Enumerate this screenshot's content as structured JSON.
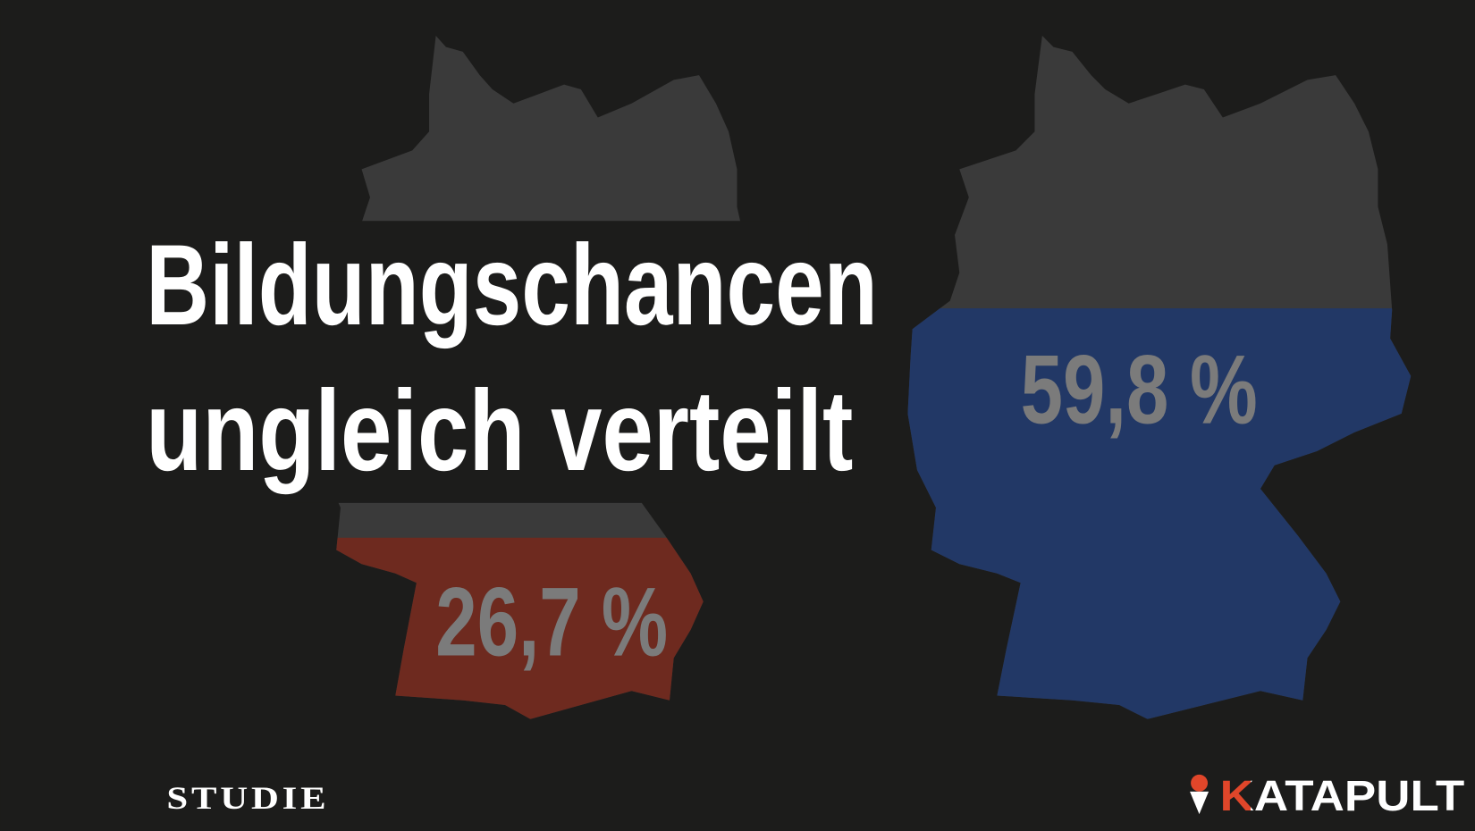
{
  "title": {
    "lines": [
      "Bildungschancen",
      "ungleich verteilt"
    ]
  },
  "maps": [
    {
      "value_label": "26,7 %"
    },
    {
      "value_label": "59,8 %"
    }
  ],
  "footer": {
    "source": "STUDIE",
    "brand": "KATAPULT"
  }
}
